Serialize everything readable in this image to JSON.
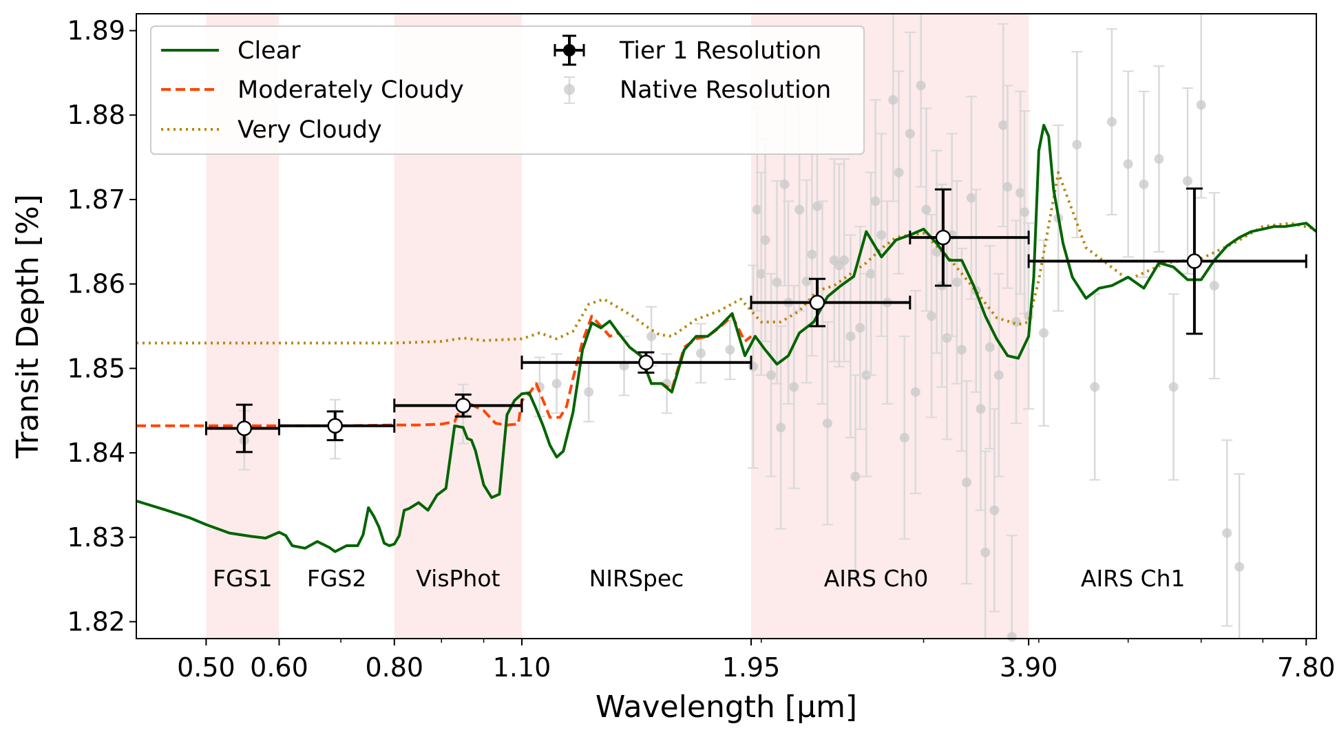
{
  "chart_data": {
    "type": "line",
    "xlabel": "Wavelength [μm]",
    "ylabel": "Transit Depth [%]",
    "x_scale": "log",
    "xlim": [
      0.42,
      8.0
    ],
    "ylim": [
      1.818,
      1.892
    ],
    "x_ticks": [
      "0.50",
      "0.60",
      "0.80",
      "1.10",
      "1.95",
      "3.90",
      "7.80"
    ],
    "y_ticks": [
      "1.82",
      "1.83",
      "1.84",
      "1.85",
      "1.86",
      "1.87",
      "1.88",
      "1.89"
    ],
    "grid": false,
    "legend_position": "top-left",
    "legend": {
      "clear": "Clear",
      "moderately_cloudy": "Moderately Cloudy",
      "very_cloudy": "Very Cloudy",
      "tier1": "Tier 1 Resolution",
      "native": "Native Resolution"
    },
    "colors": {
      "clear": "#006400",
      "moderately_cloudy": "#ff4500",
      "very_cloudy": "#b8860b",
      "band_shade": "#fdeaea",
      "native_points": "#c8c8c8",
      "tier1": "#000000"
    },
    "instrument_bands": [
      {
        "name": "FGS1",
        "range": [
          0.5,
          0.6
        ],
        "shaded": true
      },
      {
        "name": "FGS2",
        "range": [
          0.6,
          0.8
        ],
        "shaded": false
      },
      {
        "name": "VisPhot",
        "range": [
          0.8,
          1.1
        ],
        "shaded": true
      },
      {
        "name": "NIRSpec",
        "range": [
          1.1,
          1.95
        ],
        "shaded": false
      },
      {
        "name": "AIRS Ch0",
        "range": [
          1.95,
          3.9
        ],
        "shaded": true
      },
      {
        "name": "AIRS Ch1",
        "range": [
          3.9,
          7.8
        ],
        "shaded": false
      }
    ],
    "series": [
      {
        "name": "Clear",
        "style": "solid",
        "x": [
          0.42,
          0.45,
          0.48,
          0.5,
          0.53,
          0.56,
          0.58,
          0.6,
          0.61,
          0.62,
          0.64,
          0.66,
          0.68,
          0.69,
          0.71,
          0.73,
          0.74,
          0.75,
          0.76,
          0.77,
          0.78,
          0.79,
          0.8,
          0.81,
          0.82,
          0.83,
          0.85,
          0.87,
          0.89,
          0.91,
          0.93,
          0.95,
          0.96,
          0.97,
          0.98,
          1.0,
          1.02,
          1.04,
          1.06,
          1.08,
          1.1,
          1.12,
          1.14,
          1.16,
          1.18,
          1.2,
          1.22,
          1.25,
          1.28,
          1.31,
          1.34,
          1.37,
          1.4,
          1.44,
          1.48,
          1.52,
          1.56,
          1.6,
          1.65,
          1.7,
          1.75,
          1.8,
          1.86,
          1.92,
          1.97,
          2.02,
          2.08,
          2.14,
          2.2,
          2.28,
          2.36,
          2.44,
          2.52,
          2.6,
          2.7,
          2.8,
          2.9,
          3.0,
          3.1,
          3.2,
          3.3,
          3.4,
          3.5,
          3.6,
          3.7,
          3.8,
          3.9,
          3.95,
          4.0,
          4.05,
          4.1,
          4.15,
          4.25,
          4.35,
          4.5,
          4.65,
          4.8,
          5.0,
          5.2,
          5.4,
          5.6,
          5.8,
          6.0,
          6.2,
          6.4,
          6.6,
          6.8,
          7.0,
          7.2,
          7.4,
          7.6,
          7.8,
          8.0
        ],
        "y": [
          1.8343,
          1.8333,
          1.8323,
          1.8315,
          1.8305,
          1.8301,
          1.8299,
          1.8306,
          1.8302,
          1.829,
          1.8287,
          1.8295,
          1.8288,
          1.8283,
          1.829,
          1.829,
          1.8303,
          1.8335,
          1.8325,
          1.8312,
          1.8293,
          1.829,
          1.8292,
          1.8302,
          1.8332,
          1.8334,
          1.8341,
          1.8332,
          1.835,
          1.8358,
          1.8432,
          1.843,
          1.8417,
          1.8415,
          1.8402,
          1.8362,
          1.8347,
          1.8351,
          1.8445,
          1.8462,
          1.847,
          1.8471,
          1.8452,
          1.8432,
          1.8409,
          1.8395,
          1.8402,
          1.8448,
          1.8522,
          1.8554,
          1.8548,
          1.8556,
          1.8542,
          1.8525,
          1.8515,
          1.8482,
          1.8482,
          1.8472,
          1.8522,
          1.8538,
          1.8538,
          1.8549,
          1.8565,
          1.8515,
          1.8538,
          1.8522,
          1.8505,
          1.8515,
          1.8542,
          1.8555,
          1.8585,
          1.8598,
          1.8609,
          1.8662,
          1.8632,
          1.8652,
          1.8658,
          1.8665,
          1.8648,
          1.8628,
          1.8628,
          1.8598,
          1.8562,
          1.8535,
          1.8515,
          1.8512,
          1.8538,
          1.8608,
          1.8758,
          1.8788,
          1.8775,
          1.8712,
          1.8648,
          1.8608,
          1.8583,
          1.8595,
          1.8598,
          1.8608,
          1.8595,
          1.8625,
          1.862,
          1.8605,
          1.8605,
          1.8628,
          1.8645,
          1.8655,
          1.8662,
          1.8665,
          1.8668,
          1.8668,
          1.867,
          1.8672,
          1.8662
        ]
      },
      {
        "name": "Moderately Cloudy",
        "style": "dashed",
        "x": [
          0.42,
          0.5,
          0.6,
          0.7,
          0.8,
          0.85,
          0.9,
          0.93,
          0.95,
          0.97,
          1.0,
          1.03,
          1.06,
          1.09,
          1.1,
          1.12,
          1.14,
          1.16,
          1.18,
          1.21,
          1.23,
          1.25,
          1.28,
          1.31,
          1.34,
          1.37,
          1.4,
          1.44,
          1.48,
          1.52,
          1.56,
          1.6,
          1.65,
          1.7,
          1.75,
          1.8,
          1.86,
          1.92,
          1.95
        ],
        "y": [
          1.8432,
          1.8432,
          1.8432,
          1.8432,
          1.8433,
          1.8433,
          1.8434,
          1.8437,
          1.846,
          1.8457,
          1.845,
          1.8435,
          1.8433,
          1.8434,
          1.8462,
          1.847,
          1.8482,
          1.8462,
          1.8442,
          1.8442,
          1.8455,
          1.8488,
          1.8532,
          1.8562,
          1.855,
          1.8538,
          1.8542,
          1.8525,
          1.8515,
          1.8482,
          1.8482,
          1.8475,
          1.8525,
          1.8535,
          1.8538,
          1.8548,
          1.8562,
          1.8532,
          1.8538
        ]
      },
      {
        "name": "Very Cloudy",
        "style": "dotted",
        "x": [
          0.42,
          0.6,
          0.8,
          0.9,
          0.95,
          1.0,
          1.1,
          1.15,
          1.2,
          1.25,
          1.3,
          1.35,
          1.4,
          1.45,
          1.5,
          1.55,
          1.6,
          1.7,
          1.8,
          1.9,
          2.0,
          2.1,
          2.2,
          2.3,
          2.4,
          2.5,
          2.6,
          2.7,
          2.8,
          2.9,
          3.0,
          3.2,
          3.4,
          3.6,
          3.8,
          3.9,
          4.0,
          4.2,
          4.5,
          5.0,
          5.5,
          6.0,
          6.5,
          7.0,
          7.5,
          8.0
        ],
        "y": [
          1.853,
          1.853,
          1.853,
          1.8532,
          1.8536,
          1.8533,
          1.8535,
          1.8542,
          1.8535,
          1.8544,
          1.8576,
          1.8582,
          1.8572,
          1.8562,
          1.855,
          1.854,
          1.8538,
          1.8558,
          1.8568,
          1.8582,
          1.8555,
          1.8555,
          1.8568,
          1.8592,
          1.8598,
          1.8612,
          1.8625,
          1.8642,
          1.8655,
          1.8658,
          1.866,
          1.863,
          1.8595,
          1.856,
          1.8552,
          1.8555,
          1.8605,
          1.8732,
          1.8643,
          1.8605,
          1.8625,
          1.863,
          1.8648,
          1.8668,
          1.8672,
          1.8665
        ]
      }
    ],
    "tier1_points": [
      {
        "x": 0.55,
        "x_range": [
          0.5,
          0.6
        ],
        "y": 1.8429,
        "yerr": 0.0028
      },
      {
        "x": 0.69,
        "x_range": [
          0.6,
          0.8
        ],
        "y": 1.8432,
        "yerr": 0.0017
      },
      {
        "x": 0.95,
        "x_range": [
          0.8,
          1.1
        ],
        "y": 1.8456,
        "yerr": 0.0013
      },
      {
        "x": 1.5,
        "x_range": [
          1.1,
          1.95
        ],
        "y": 1.8507,
        "yerr": 0.0012
      },
      {
        "x": 2.3,
        "x_range": [
          1.95,
          2.9
        ],
        "y": 1.8578,
        "yerr": 0.0028
      },
      {
        "x": 3.15,
        "x_range": [
          2.9,
          3.9
        ],
        "y": 1.8655,
        "yerr": 0.0057
      },
      {
        "x": 5.9,
        "x_range": [
          3.9,
          7.8
        ],
        "y": 1.8627,
        "yerr": 0.0086
      }
    ],
    "native_points": {
      "x": [
        0.55,
        0.69,
        0.95,
        1.15,
        1.2,
        1.3,
        1.42,
        1.52,
        1.58,
        1.72,
        1.85,
        1.96,
        1.98,
        2.0,
        2.02,
        2.05,
        2.08,
        2.1,
        2.12,
        2.14,
        2.17,
        2.2,
        2.24,
        2.27,
        2.3,
        2.33,
        2.36,
        2.4,
        2.43,
        2.46,
        2.5,
        2.53,
        2.56,
        2.6,
        2.63,
        2.66,
        2.7,
        2.74,
        2.78,
        2.82,
        2.86,
        2.9,
        2.94,
        2.98,
        3.02,
        3.06,
        3.1,
        3.14,
        3.18,
        3.22,
        3.26,
        3.3,
        3.34,
        3.38,
        3.42,
        3.46,
        3.5,
        3.54,
        3.58,
        3.62,
        3.66,
        3.7,
        3.74,
        3.78,
        3.82,
        3.86,
        3.9,
        4.05,
        4.2,
        4.4,
        4.6,
        4.8,
        5.0,
        5.2,
        5.4,
        5.6,
        5.8,
        6.0,
        6.2,
        6.4,
        6.6
      ],
      "y": [
        1.8415,
        1.8428,
        1.8446,
        1.8478,
        1.8482,
        1.8472,
        1.8503,
        1.8538,
        1.8482,
        1.8518,
        1.8522,
        1.8502,
        1.8688,
        1.8612,
        1.8652,
        1.8492,
        1.8602,
        1.843,
        1.8718,
        1.8578,
        1.8478,
        1.8688,
        1.8603,
        1.8635,
        1.8692,
        1.8578,
        1.8435,
        1.8628,
        1.8622,
        1.8628,
        1.8538,
        1.8372,
        1.8548,
        1.8492,
        1.8612,
        1.8698,
        1.8658,
        1.8578,
        1.8818,
        1.8732,
        1.8418,
        1.8778,
        1.8472,
        1.8835,
        1.8688,
        1.8562,
        1.8638,
        1.8598,
        1.8536,
        1.8658,
        1.8602,
        1.8522,
        1.8365,
        1.8702,
        1.8592,
        1.8452,
        1.8282,
        1.8525,
        1.8332,
        1.8492,
        1.8788,
        1.8715,
        1.8182,
        1.8555,
        1.8708,
        1.8685,
        1.8562,
        1.8542,
        1.8678,
        1.8765,
        1.8478,
        1.8792,
        1.8742,
        1.8718,
        1.8748,
        1.8478,
        1.8722,
        1.8812,
        1.8598,
        1.8305,
        1.8265
      ]
    }
  }
}
